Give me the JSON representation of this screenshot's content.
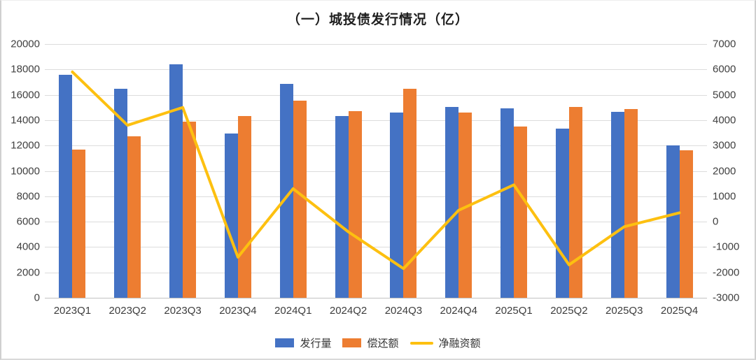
{
  "title": "（一）城投债发行情况（亿）",
  "colors": {
    "issuance_bar": "#4472C4",
    "repayment_bar": "#ED7D31",
    "net_line": "#FDC010",
    "gridline": "#DCDCDC",
    "axis_text": "#404040"
  },
  "chart_data": {
    "type": "bar",
    "subtype": "grouped-bars-with-line-combo",
    "title": "（一）城投债发行情况（亿）",
    "categories": [
      "2023Q1",
      "2023Q2",
      "2023Q3",
      "2023Q4",
      "2024Q1",
      "2024Q2",
      "2024Q3",
      "2024Q4",
      "2025Q1",
      "2025Q2",
      "2025Q3",
      "2025Q4"
    ],
    "series": [
      {
        "name": "发行量",
        "type": "bar",
        "axis": "left",
        "color": "#4472C4",
        "values": [
          17600,
          16500,
          18400,
          12950,
          16850,
          14300,
          14600,
          15050,
          14950,
          13350,
          14650,
          12000
        ]
      },
      {
        "name": "偿还额",
        "type": "bar",
        "axis": "left",
        "color": "#ED7D31",
        "values": [
          11700,
          12700,
          13900,
          14350,
          15550,
          14700,
          16450,
          14600,
          13500,
          15050,
          14850,
          11650
        ]
      },
      {
        "name": "净融资额",
        "type": "line",
        "axis": "right",
        "color": "#FDC010",
        "values": [
          5900,
          3800,
          4500,
          -1400,
          1300,
          -400,
          -1850,
          450,
          1450,
          -1700,
          -200,
          350
        ]
      }
    ],
    "left_axis": {
      "min": 0,
      "max": 20000,
      "step": 2000,
      "tick_labels": [
        "20000",
        "18000",
        "16000",
        "14000",
        "12000",
        "10000",
        "8000",
        "6000",
        "4000",
        "2000",
        "0"
      ]
    },
    "right_axis": {
      "min": -3000,
      "max": 7000,
      "step": 1000,
      "tick_labels": [
        "7000",
        "6000",
        "5000",
        "4000",
        "3000",
        "2000",
        "1000",
        "0",
        "-1000",
        "-2000",
        "-3000"
      ]
    },
    "grid": true,
    "legend_position": "bottom",
    "legend": [
      "发行量",
      "偿还额",
      "净融资额"
    ]
  }
}
